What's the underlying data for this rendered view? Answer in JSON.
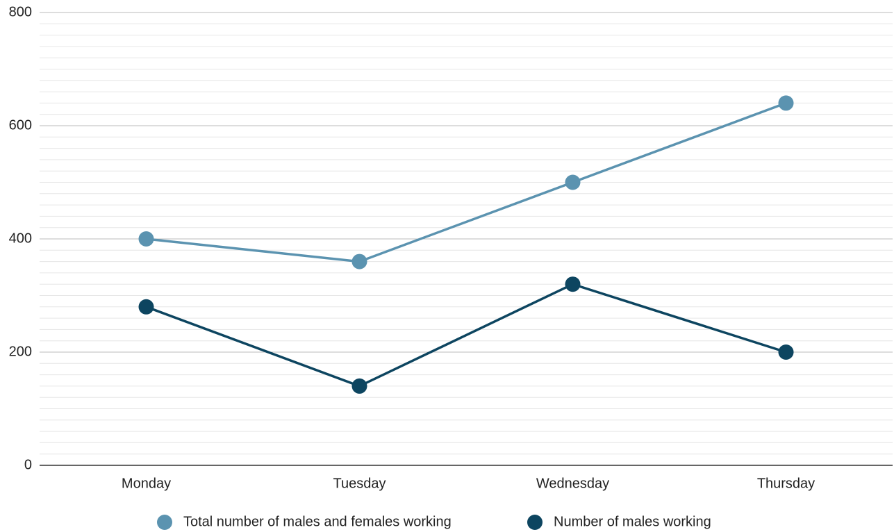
{
  "chart_data": {
    "type": "line",
    "categories": [
      "Monday",
      "Tuesday",
      "Wednesday",
      "Thursday"
    ],
    "series": [
      {
        "name": "Total number of males and females working",
        "color": "#5b93b0",
        "values": [
          400,
          360,
          500,
          640
        ]
      },
      {
        "name": "Number of males working",
        "color": "#0d4560",
        "values": [
          280,
          140,
          320,
          200
        ]
      }
    ],
    "ylim": [
      0,
      800
    ],
    "yticks": [
      0,
      200,
      400,
      600,
      800
    ],
    "minor_yticks": [
      20,
      40,
      60,
      80,
      100,
      120,
      140,
      160,
      180,
      220,
      240,
      260,
      280,
      300,
      320,
      340,
      360,
      380,
      420,
      440,
      460,
      480,
      500,
      520,
      540,
      560,
      580,
      620,
      640,
      660,
      680,
      700,
      720,
      740,
      760,
      780
    ],
    "grid": true,
    "legend": "bottom"
  }
}
